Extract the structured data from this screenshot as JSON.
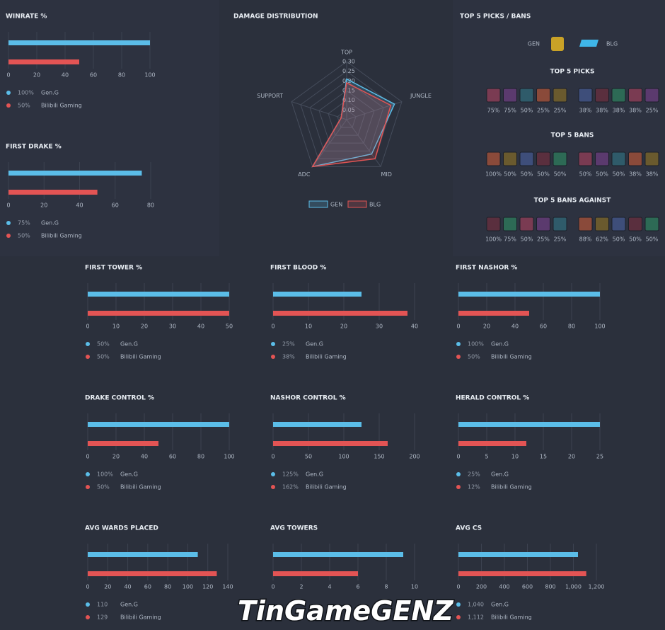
{
  "chart_data": [
    {
      "type": "hbar",
      "title": "WINRATE %",
      "xlim": [
        0,
        100
      ],
      "xticks": [
        0,
        20,
        40,
        60,
        80,
        100
      ],
      "series": [
        {
          "name": "Gen.G",
          "color": "#5bbde8",
          "values": [
            100
          ],
          "value_labels": [
            "100%"
          ]
        },
        {
          "name": "Bilibili Gaming",
          "color": "#e35454",
          "values": [
            50
          ],
          "value_labels": [
            "50%"
          ]
        }
      ]
    },
    {
      "type": "hbar",
      "title": "FIRST DRAKE %",
      "xlim": [
        0,
        80
      ],
      "xticks": [
        0,
        20,
        40,
        60,
        80
      ],
      "series": [
        {
          "name": "Gen.G",
          "color": "#5bbde8",
          "values": [
            75
          ],
          "value_labels": [
            "75%"
          ]
        },
        {
          "name": "Bilibili Gaming",
          "color": "#e35454",
          "values": [
            50
          ],
          "value_labels": [
            "50%"
          ]
        }
      ]
    },
    {
      "type": "radar",
      "title": "DAMAGE DISTRIBUTION",
      "categories": [
        "TOP",
        "JUNGLE",
        "MID",
        "ADC",
        "SUPPORT"
      ],
      "rlim": [
        0,
        0.3
      ],
      "rticks": [
        0.05,
        {
          "value": 0.1,
          "label": "0.10"
        },
        0.15,
        {
          "value": 0.2,
          "label": "0.20"
        },
        0.25,
        {
          "value": 0.3,
          "label": "0.30"
        }
      ],
      "series": [
        {
          "name": "GEN",
          "color": "#5bbde8",
          "values": [
            0.21,
            0.26,
            0.22,
            0.3,
            0.03
          ]
        },
        {
          "name": "BLG",
          "color": "#e35454",
          "values": [
            0.19,
            0.24,
            0.25,
            0.3,
            0.03
          ]
        }
      ]
    },
    {
      "type": "hbar",
      "title": "FIRST TOWER %",
      "xlim": [
        0,
        50
      ],
      "xticks": [
        0,
        10,
        20,
        30,
        40,
        50
      ],
      "series": [
        {
          "name": "Gen.G",
          "color": "#5bbde8",
          "values": [
            50
          ],
          "value_labels": [
            "50%"
          ]
        },
        {
          "name": "Bilibili Gaming",
          "color": "#e35454",
          "values": [
            50
          ],
          "value_labels": [
            "50%"
          ]
        }
      ]
    },
    {
      "type": "hbar",
      "title": "FIRST BLOOD %",
      "xlim": [
        0,
        40
      ],
      "xticks": [
        0,
        10,
        20,
        30,
        40
      ],
      "series": [
        {
          "name": "Gen.G",
          "color": "#5bbde8",
          "values": [
            25
          ],
          "value_labels": [
            "25%"
          ]
        },
        {
          "name": "Bilibili Gaming",
          "color": "#e35454",
          "values": [
            38
          ],
          "value_labels": [
            "38%"
          ]
        }
      ]
    },
    {
      "type": "hbar",
      "title": "FIRST NASHOR %",
      "xlim": [
        0,
        100
      ],
      "xticks": [
        0,
        20,
        40,
        60,
        80,
        100
      ],
      "series": [
        {
          "name": "Gen.G",
          "color": "#5bbde8",
          "values": [
            100
          ],
          "value_labels": [
            "100%"
          ]
        },
        {
          "name": "Bilibili Gaming",
          "color": "#e35454",
          "values": [
            50
          ],
          "value_labels": [
            "50%"
          ]
        }
      ]
    },
    {
      "type": "hbar",
      "title": "DRAKE CONTROL %",
      "xlim": [
        0,
        100
      ],
      "xticks": [
        0,
        20,
        40,
        60,
        80,
        100
      ],
      "series": [
        {
          "name": "Gen.G",
          "color": "#5bbde8",
          "values": [
            100
          ],
          "value_labels": [
            "100%"
          ]
        },
        {
          "name": "Bilibili Gaming",
          "color": "#e35454",
          "values": [
            50
          ],
          "value_labels": [
            "50%"
          ]
        }
      ]
    },
    {
      "type": "hbar",
      "title": "NASHOR CONTROL %",
      "xlim": [
        0,
        200
      ],
      "xticks": [
        0,
        50,
        100,
        150,
        200
      ],
      "series": [
        {
          "name": "Gen.G",
          "color": "#5bbde8",
          "values": [
            125
          ],
          "value_labels": [
            "125%"
          ]
        },
        {
          "name": "Bilibili Gaming",
          "color": "#e35454",
          "values": [
            162
          ],
          "value_labels": [
            "162%"
          ]
        }
      ]
    },
    {
      "type": "hbar",
      "title": "HERALD CONTROL %",
      "xlim": [
        0,
        25
      ],
      "xticks": [
        0,
        5,
        10,
        15,
        20,
        25
      ],
      "series": [
        {
          "name": "Gen.G",
          "color": "#5bbde8",
          "values": [
            25
          ],
          "value_labels": [
            "25%"
          ]
        },
        {
          "name": "Bilibili Gaming",
          "color": "#e35454",
          "values": [
            12
          ],
          "value_labels": [
            "12%"
          ]
        }
      ]
    },
    {
      "type": "hbar",
      "title": "AVG WARDS PLACED",
      "xlim": [
        0,
        140
      ],
      "xticks": [
        0,
        20,
        40,
        60,
        80,
        100,
        120,
        140
      ],
      "series": [
        {
          "name": "Gen.G",
          "color": "#5bbde8",
          "values": [
            110
          ]
        },
        {
          "name": "Bilibili Gaming",
          "color": "#e35454",
          "values": [
            129
          ]
        }
      ]
    },
    {
      "type": "hbar",
      "title": "AVG TOWERS",
      "xlim": [
        0,
        10
      ],
      "xticks": [
        0,
        2,
        4,
        6,
        8,
        10
      ],
      "series": [
        {
          "color": "#5bbde8",
          "values": [
            9.2
          ]
        },
        {
          "color": "#e35454",
          "values": [
            6
          ]
        }
      ]
    },
    {
      "type": "hbar",
      "title": "AVG CS",
      "xlim": [
        0,
        1200
      ],
      "xticks": [
        0,
        200,
        400,
        600,
        800,
        {
          "value": 1000,
          "label": "1,000"
        },
        {
          "value": 1200,
          "label": "1,200"
        }
      ],
      "series": [
        {
          "name": "Gen.G",
          "color": "#5bbde8",
          "values": [
            1040
          ],
          "value_labels": [
            "1,040"
          ]
        },
        {
          "name": "Bilibili Gaming",
          "color": "#e35454",
          "values": [
            1112
          ],
          "value_labels": [
            "1,112"
          ]
        }
      ]
    }
  ],
  "picks_bans": {
    "title": "TOP 5 PICKS / BANS",
    "teams": [
      "GEN",
      "BLG"
    ],
    "sections": [
      {
        "title": "TOP 5 PICKS",
        "teams": [
          [
            "75%",
            "75%",
            "50%",
            "25%",
            "25%"
          ],
          [
            "38%",
            "38%",
            "38%",
            "38%",
            "25%"
          ]
        ]
      },
      {
        "title": "TOP 5 BANS",
        "teams": [
          [
            "100%",
            "50%",
            "50%",
            "50%",
            "50%"
          ],
          [
            "50%",
            "50%",
            "50%",
            "38%",
            "38%"
          ]
        ]
      },
      {
        "title": "TOP 5 BANS AGAINST",
        "teams": [
          [
            "100%",
            "75%",
            "50%",
            "25%",
            "25%"
          ],
          [
            "88%",
            "62%",
            "50%",
            "50%",
            "50%"
          ]
        ]
      }
    ]
  },
  "watermark": "TinGameGENZ"
}
